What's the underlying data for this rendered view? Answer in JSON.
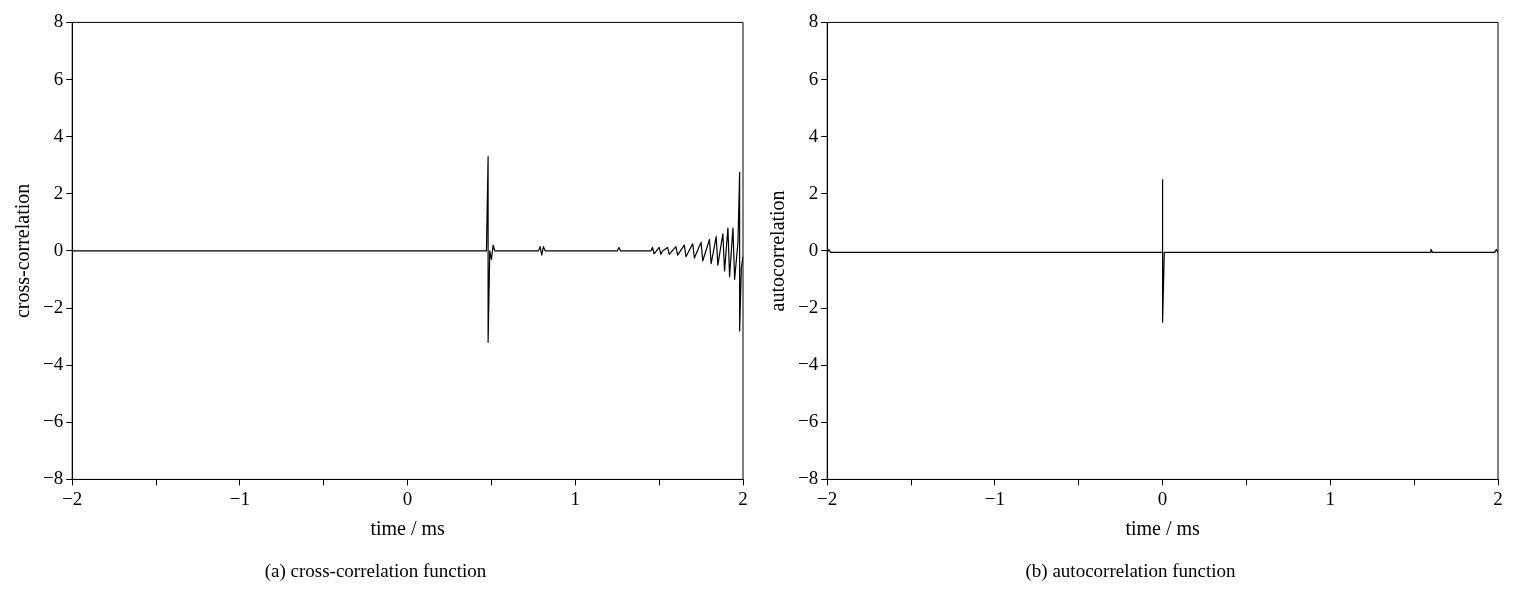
{
  "chart_data": [
    {
      "type": "line",
      "title": "(a) cross-correlation function",
      "xlabel": "time / ms",
      "ylabel": "cross-correlation",
      "color": "#000000",
      "x": [
        -2,
        0.47,
        0.48,
        0.48,
        0.49,
        0.5,
        0.51,
        0.52,
        0.78,
        0.79,
        0.8,
        0.81,
        0.82,
        1.25,
        1.26,
        1.27,
        1.45,
        1.46,
        1.47,
        1.5,
        1.51,
        1.52,
        1.55,
        1.56,
        1.6,
        1.61,
        1.65,
        1.66,
        1.7,
        1.71,
        1.75,
        1.76,
        1.8,
        1.81,
        1.84,
        1.85,
        1.88,
        1.89,
        1.91,
        1.92,
        1.94,
        1.95,
        1.97,
        1.98,
        1.98,
        1.99,
        2
      ],
      "values": [
        0,
        0,
        3.3,
        -3.2,
        0,
        -0.3,
        0.2,
        0,
        0,
        0.15,
        -0.15,
        0.15,
        0,
        0,
        0.12,
        0,
        0,
        0.12,
        -0.1,
        0.12,
        -0.12,
        0,
        0.12,
        -0.12,
        0.15,
        -0.15,
        0.2,
        -0.2,
        0.25,
        -0.25,
        0.3,
        -0.35,
        0.4,
        -0.45,
        0.5,
        -0.5,
        0.6,
        -0.7,
        0.8,
        -0.9,
        0.8,
        -1,
        0.3,
        2.75,
        -2.8,
        -0.6,
        -0.2
      ],
      "xlim": [
        -2,
        2
      ],
      "ylim": [
        -8,
        8
      ],
      "xticks": [
        {
          "value": -2,
          "label": "−2"
        },
        {
          "value": -1.5,
          "label": null
        },
        {
          "value": -1,
          "label": "−1"
        },
        {
          "value": -0.5,
          "label": null
        },
        0,
        {
          "value": 0.5,
          "label": null
        },
        1,
        {
          "value": 1.5,
          "label": null
        },
        2
      ],
      "yticks": [
        {
          "value": -8,
          "label": "−8"
        },
        {
          "value": -6,
          "label": "−6"
        },
        {
          "value": -4,
          "label": "−4"
        },
        {
          "value": -2,
          "label": "−2"
        },
        0,
        2,
        4,
        6,
        8
      ]
    },
    {
      "type": "line",
      "title": "(b) autocorrelation function",
      "xlabel": "time / ms",
      "ylabel": "autocorrelation",
      "color": "#000000",
      "x": [
        -2,
        -1.99,
        -1.98,
        0,
        0,
        0,
        0.01,
        1.6,
        1.6,
        1.61,
        1.98,
        1.99,
        2
      ],
      "values": [
        -0.05,
        0.05,
        -0.05,
        -0.05,
        2.5,
        -2.5,
        -0.05,
        -0.05,
        0.05,
        -0.05,
        -0.05,
        0.05,
        -0.05
      ],
      "xlim": [
        -2,
        2
      ],
      "ylim": [
        -8,
        8
      ],
      "xticks": [
        {
          "value": -2,
          "label": "−2"
        },
        {
          "value": -1.5,
          "label": null
        },
        {
          "value": -1,
          "label": "−1"
        },
        {
          "value": -0.5,
          "label": null
        },
        0,
        {
          "value": 0.5,
          "label": null
        },
        1,
        {
          "value": 1.5,
          "label": null
        },
        2
      ],
      "yticks": [
        {
          "value": -8,
          "label": "−8"
        },
        {
          "value": -6,
          "label": "−6"
        },
        {
          "value": -4,
          "label": "−4"
        },
        {
          "value": -2,
          "label": "−2"
        },
        0,
        2,
        4,
        6,
        8
      ]
    }
  ]
}
